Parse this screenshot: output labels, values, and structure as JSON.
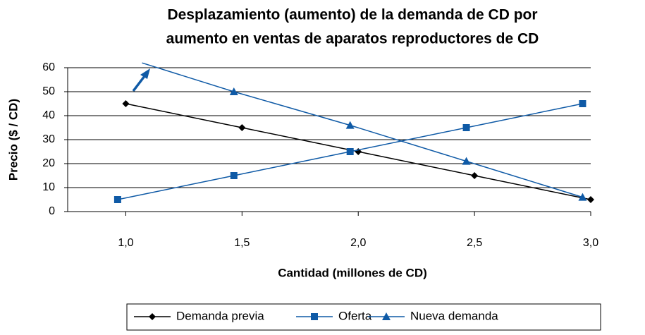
{
  "chart_data": {
    "type": "line",
    "title": [
      "Desplazamiento (aumento) de la demanda de CD por",
      "aumento en ventas de aparatos reproductores de CD"
    ],
    "x_label": "Cantidad (millones de CD)",
    "y_label": "Precio ($ / CD)",
    "xlim": [
      0.75,
      3.0
    ],
    "xticks": [
      {
        "value": 1,
        "label": "1,0"
      },
      {
        "value": 1.5,
        "label": "1,5"
      },
      {
        "value": 2,
        "label": "2,0"
      },
      {
        "value": 2.5,
        "label": "2,5"
      },
      {
        "value": 3,
        "label": "3,0"
      }
    ],
    "ylim": [
      0,
      60
    ],
    "yticks": [
      0,
      10,
      20,
      30,
      40,
      50,
      60
    ],
    "grid": true,
    "legend": "bottom",
    "series": [
      {
        "name": "Demanda previa",
        "color": "#000000",
        "marker": "diamond",
        "x": [
          1.0,
          1.5,
          2.0,
          2.5,
          3.0
        ],
        "values": [
          45,
          35,
          25,
          15,
          5
        ]
      },
      {
        "name": "Oferta",
        "color": "#0f5aa6",
        "marker": "square",
        "x": [
          0.965,
          1.465,
          1.965,
          2.465,
          2.965
        ],
        "values": [
          5,
          15,
          25,
          35,
          45
        ]
      },
      {
        "name": "Nueva demanda",
        "color": "#0f5aa6",
        "marker": "triangle",
        "x": [
          1.07,
          1.465,
          1.965,
          2.465,
          2.965
        ],
        "values": [
          62,
          50,
          36,
          21,
          6
        ]
      }
    ]
  }
}
